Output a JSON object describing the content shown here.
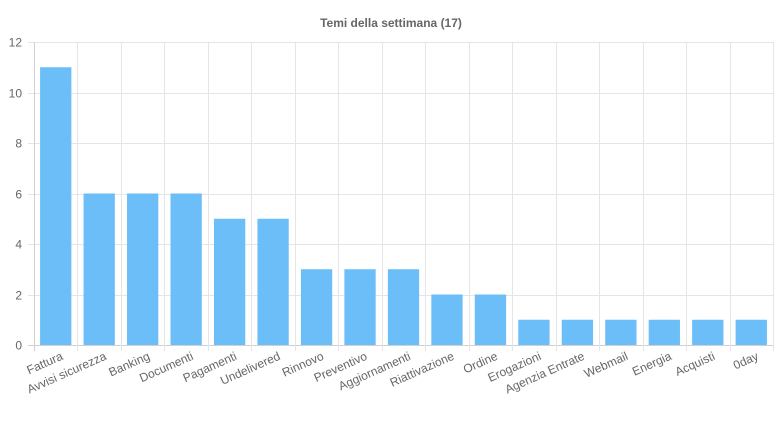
{
  "chart_data": {
    "type": "bar",
    "title": "Temi della settimana (17)",
    "xlabel": "",
    "ylabel": "",
    "categories": [
      "Fattura",
      "Avvisi sicurezza",
      "Banking",
      "Documenti",
      "Pagamenti",
      "Undelivered",
      "Rinnovo",
      "Preventivo",
      "Aggiornamenti",
      "Riattivazione",
      "Ordine",
      "Erogazioni",
      "Agenzia Entrate",
      "Webmail",
      "Energia",
      "Acquisti",
      "0day"
    ],
    "values": [
      11,
      6,
      6,
      6,
      5,
      5,
      3,
      3,
      3,
      2,
      2,
      1,
      1,
      1,
      1,
      1,
      1
    ],
    "ylim": [
      0,
      12
    ],
    "yticks": [
      0,
      2,
      4,
      6,
      8,
      10,
      12
    ],
    "grid": true,
    "legend": "none",
    "bar_color": "#6cbef8"
  }
}
